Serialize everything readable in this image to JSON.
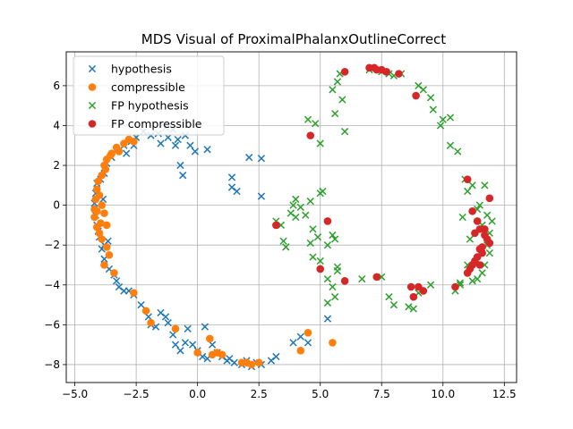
{
  "chart_data": {
    "type": "scatter",
    "title": "MDS Visual of ProximalPhalanxOutlineCorrect",
    "xlabel": "",
    "ylabel": "",
    "xlim": [
      -5.35,
      13.0
    ],
    "ylim": [
      -8.9,
      7.7
    ],
    "xticks": [
      -5.0,
      -2.5,
      0.0,
      2.5,
      5.0,
      7.5,
      10.0,
      12.5
    ],
    "xtick_labels": [
      "−5.0",
      "−2.5",
      "0.0",
      "2.5",
      "5.0",
      "7.5",
      "10.0",
      "12.5"
    ],
    "yticks": [
      -8,
      -6,
      -4,
      -2,
      0,
      2,
      4,
      6
    ],
    "ytick_labels": [
      "−8",
      "−6",
      "−4",
      "−2",
      "0",
      "2",
      "4",
      "6"
    ],
    "grid": true,
    "legend_position": "top-left",
    "series": [
      {
        "name": "hypothesis",
        "marker": "x",
        "color": "#1f77b4",
        "points": [
          [
            -4.1,
            1.1
          ],
          [
            -4.15,
            0.6
          ],
          [
            -4.2,
            0.1
          ],
          [
            -4.15,
            -0.5
          ],
          [
            -4.1,
            -1.0
          ],
          [
            -4.0,
            -1.6
          ],
          [
            -3.9,
            -2.2
          ],
          [
            -3.8,
            -2.7
          ],
          [
            -3.6,
            -3.2
          ],
          [
            -3.4,
            -3.5
          ],
          [
            -3.3,
            -3.8
          ],
          [
            -3.2,
            -4.1
          ],
          [
            -3.0,
            -4.3
          ],
          [
            -2.8,
            -4.3
          ],
          [
            -2.6,
            -4.5
          ],
          [
            -2.3,
            -5.0
          ],
          [
            -2.0,
            -5.6
          ],
          [
            -1.9,
            -6.0
          ],
          [
            -1.7,
            -6.1
          ],
          [
            -1.5,
            -5.4
          ],
          [
            -1.3,
            -5.6
          ],
          [
            -1.2,
            -5.9
          ],
          [
            -1.0,
            -6.5
          ],
          [
            -0.9,
            -7.0
          ],
          [
            -0.7,
            -7.3
          ],
          [
            -0.5,
            -6.9
          ],
          [
            -0.4,
            -6.2
          ],
          [
            -0.2,
            -7.0
          ],
          [
            0.0,
            -7.3
          ],
          [
            0.2,
            -7.6
          ],
          [
            0.3,
            -6.1
          ],
          [
            0.4,
            -7.7
          ],
          [
            0.6,
            -7.0
          ],
          [
            0.8,
            -7.4
          ],
          [
            1.0,
            -7.6
          ],
          [
            1.2,
            -7.8
          ],
          [
            1.3,
            -7.7
          ],
          [
            1.5,
            -7.9
          ],
          [
            1.8,
            -8.0
          ],
          [
            2.0,
            -7.8
          ],
          [
            2.2,
            -8.1
          ],
          [
            2.4,
            -7.9
          ],
          [
            2.6,
            -8.0
          ],
          [
            3.0,
            -7.8
          ],
          [
            3.2,
            -7.6
          ],
          [
            3.9,
            -6.9
          ],
          [
            4.2,
            -6.6
          ],
          [
            4.5,
            -6.9
          ],
          [
            5.3,
            -5.7
          ],
          [
            -3.8,
            1.6
          ],
          [
            -3.7,
            2.1
          ],
          [
            -3.5,
            2.4
          ],
          [
            -3.3,
            2.8
          ],
          [
            -3.0,
            3.0
          ],
          [
            -2.7,
            3.2
          ],
          [
            -2.5,
            3.4
          ],
          [
            -2.2,
            3.7
          ],
          [
            -1.9,
            3.5
          ],
          [
            -1.6,
            3.6
          ],
          [
            -1.3,
            3.9
          ],
          [
            -1.0,
            3.8
          ],
          [
            -0.8,
            3.3
          ],
          [
            -0.5,
            3.5
          ],
          [
            -0.3,
            3.0
          ],
          [
            -0.1,
            2.7
          ],
          [
            0.4,
            2.8
          ],
          [
            -0.7,
            2.0
          ],
          [
            -0.9,
            3.0
          ],
          [
            -1.2,
            3.4
          ],
          [
            -2.6,
            3.0
          ],
          [
            -1.5,
            3.1
          ],
          [
            -2.9,
            2.6
          ],
          [
            -0.6,
            1.5
          ],
          [
            1.4,
            1.4
          ],
          [
            1.4,
            0.9
          ],
          [
            1.6,
            0.7
          ],
          [
            2.6,
            0.45
          ],
          [
            2.1,
            2.4
          ],
          [
            2.6,
            2.35
          ],
          [
            -4.05,
            -1.3
          ],
          [
            -3.95,
            1.3
          ],
          [
            -3.8,
            -2.0
          ],
          [
            -3.85,
            0.3
          ],
          [
            -3.65,
            -1.8
          ]
        ]
      },
      {
        "name": "compressible",
        "marker": "o",
        "color": "#ff7f0e",
        "points": [
          [
            -4.1,
            0.8
          ],
          [
            -4.15,
            0.3
          ],
          [
            -4.2,
            -0.2
          ],
          [
            -4.2,
            -0.6
          ],
          [
            -4.1,
            -1.1
          ],
          [
            -4.0,
            -1.4
          ],
          [
            -3.9,
            1.5
          ],
          [
            -3.8,
            2.0
          ],
          [
            -3.7,
            2.3
          ],
          [
            -3.5,
            2.6
          ],
          [
            -3.3,
            2.9
          ],
          [
            -3.0,
            3.1
          ],
          [
            -2.8,
            3.3
          ],
          [
            -2.6,
            3.2
          ],
          [
            -3.9,
            0.0
          ],
          [
            -3.8,
            -0.4
          ],
          [
            -3.7,
            -1.0
          ],
          [
            -3.6,
            -2.5
          ],
          [
            -3.8,
            -3.0
          ],
          [
            -3.4,
            -3.4
          ],
          [
            -2.6,
            -4.4
          ],
          [
            -2.1,
            -5.3
          ],
          [
            -1.9,
            -5.9
          ],
          [
            -0.9,
            -6.2
          ],
          [
            0.0,
            -7.4
          ],
          [
            0.6,
            -7.5
          ],
          [
            0.8,
            -7.4
          ],
          [
            1.0,
            -7.5
          ],
          [
            0.5,
            -6.7
          ],
          [
            1.8,
            -7.9
          ],
          [
            2.0,
            -7.9
          ],
          [
            2.2,
            -8.0
          ],
          [
            2.5,
            -7.9
          ],
          [
            4.2,
            -7.3
          ],
          [
            4.5,
            -6.4
          ],
          [
            5.5,
            -6.9
          ],
          [
            -4.0,
            0.5
          ],
          [
            -3.95,
            -0.9
          ],
          [
            -4.05,
            1.2
          ],
          [
            -3.75,
            1.8
          ],
          [
            -3.55,
            2.5
          ],
          [
            -3.2,
            2.7
          ],
          [
            -3.9,
            -1.7
          ],
          [
            -3.7,
            -2.1
          ],
          [
            -4.1,
            -0.3
          ]
        ]
      },
      {
        "name": "FP hypothesis",
        "marker": "x",
        "color": "#2ca02c",
        "points": [
          [
            5.8,
            6.6
          ],
          [
            5.7,
            6.2
          ],
          [
            5.5,
            5.8
          ],
          [
            5.6,
            4.6
          ],
          [
            5.9,
            5.3
          ],
          [
            6.0,
            3.7
          ],
          [
            5.0,
            3.1
          ],
          [
            4.8,
            4.1
          ],
          [
            4.5,
            4.3
          ],
          [
            7.0,
            6.8
          ],
          [
            7.5,
            6.7
          ],
          [
            7.8,
            6.6
          ],
          [
            8.0,
            6.5
          ],
          [
            8.3,
            6.6
          ],
          [
            9.0,
            6.0
          ],
          [
            9.2,
            5.8
          ],
          [
            9.5,
            5.4
          ],
          [
            9.6,
            4.8
          ],
          [
            10.0,
            4.3
          ],
          [
            10.3,
            4.4
          ],
          [
            9.9,
            4.0
          ],
          [
            10.3,
            3.0
          ],
          [
            10.6,
            2.7
          ],
          [
            10.9,
            1.3
          ],
          [
            11.2,
            1.0
          ],
          [
            11.7,
            1.0
          ],
          [
            11.5,
            0.0
          ],
          [
            11.8,
            -0.5
          ],
          [
            12.0,
            -0.8
          ],
          [
            11.9,
            -1.4
          ],
          [
            11.9,
            -2.4
          ],
          [
            11.7,
            -3.0
          ],
          [
            11.6,
            -3.4
          ],
          [
            11.4,
            -3.7
          ],
          [
            11.2,
            -3.8
          ],
          [
            10.7,
            -4.0
          ],
          [
            10.5,
            -4.3
          ],
          [
            9.5,
            -4.0
          ],
          [
            9.0,
            -4.4
          ],
          [
            8.8,
            -5.2
          ],
          [
            8.6,
            -5.1
          ],
          [
            8.0,
            -5.0
          ],
          [
            7.8,
            -4.6
          ],
          [
            7.5,
            -3.6
          ],
          [
            6.7,
            -3.7
          ],
          [
            5.3,
            -3.7
          ],
          [
            5.5,
            -4.1
          ],
          [
            5.6,
            -4.6
          ],
          [
            5.3,
            -4.9
          ],
          [
            5.7,
            -3.3
          ],
          [
            5.0,
            -2.8
          ],
          [
            4.7,
            -2.6
          ],
          [
            4.6,
            -1.9
          ],
          [
            4.9,
            -1.6
          ],
          [
            5.5,
            -1.5
          ],
          [
            5.6,
            -1.7
          ],
          [
            5.7,
            -3.1
          ],
          [
            3.2,
            -0.8
          ],
          [
            3.4,
            -1.0
          ],
          [
            3.5,
            -1.8
          ],
          [
            3.6,
            -2.1
          ],
          [
            4.0,
            -0.6
          ],
          [
            4.2,
            -0.1
          ],
          [
            4.4,
            -0.5
          ],
          [
            4.6,
            0.2
          ],
          [
            5.0,
            0.6
          ],
          [
            5.1,
            0.7
          ],
          [
            3.9,
            0.0
          ],
          [
            3.8,
            -0.4
          ],
          [
            4.0,
            0.3
          ],
          [
            5.3,
            -2.0
          ],
          [
            4.7,
            -1.2
          ],
          [
            10.7,
            -3.9
          ],
          [
            11.0,
            -3.0
          ],
          [
            11.1,
            -1.7
          ],
          [
            10.8,
            -0.6
          ],
          [
            11.0,
            0.7
          ],
          [
            11.4,
            -0.2
          ],
          [
            11.8,
            -2.0
          ],
          [
            11.6,
            -1.0
          ]
        ]
      },
      {
        "name": "FP compressible",
        "marker": "o",
        "color": "#d62728",
        "points": [
          [
            6.0,
            6.7
          ],
          [
            7.0,
            6.9
          ],
          [
            7.2,
            6.9
          ],
          [
            7.3,
            6.8
          ],
          [
            7.5,
            6.8
          ],
          [
            7.7,
            6.7
          ],
          [
            8.2,
            6.6
          ],
          [
            8.9,
            5.5
          ],
          [
            4.6,
            3.5
          ],
          [
            11.0,
            1.3
          ],
          [
            11.9,
            0.35
          ],
          [
            11.2,
            -0.3
          ],
          [
            11.4,
            -0.8
          ],
          [
            11.5,
            -1.2
          ],
          [
            11.7,
            -1.5
          ],
          [
            11.8,
            -1.7
          ],
          [
            11.9,
            -1.9
          ],
          [
            11.5,
            -2.2
          ],
          [
            11.6,
            -2.4
          ],
          [
            11.4,
            -2.6
          ],
          [
            11.3,
            -2.8
          ],
          [
            11.2,
            -3.0
          ],
          [
            11.1,
            -3.2
          ],
          [
            11.0,
            -3.4
          ],
          [
            10.5,
            -4.1
          ],
          [
            9.0,
            -4.1
          ],
          [
            8.7,
            -4.1
          ],
          [
            8.8,
            -4.6
          ],
          [
            9.2,
            -4.3
          ],
          [
            7.3,
            -3.6
          ],
          [
            6.0,
            -3.8
          ],
          [
            5.0,
            -3.2
          ],
          [
            5.3,
            -0.8
          ],
          [
            3.2,
            -1.0
          ],
          [
            11.3,
            -1.4
          ],
          [
            11.6,
            -2.1
          ],
          [
            11.7,
            -1.2
          ],
          [
            11.5,
            -3.0
          ]
        ]
      }
    ]
  },
  "legend": {
    "items": [
      {
        "label": "hypothesis",
        "marker": "x",
        "color": "#1f77b4"
      },
      {
        "label": "compressible",
        "marker": "o",
        "color": "#ff7f0e"
      },
      {
        "label": "FP hypothesis",
        "marker": "x",
        "color": "#2ca02c"
      },
      {
        "label": "FP compressible",
        "marker": "o",
        "color": "#d62728"
      }
    ]
  }
}
